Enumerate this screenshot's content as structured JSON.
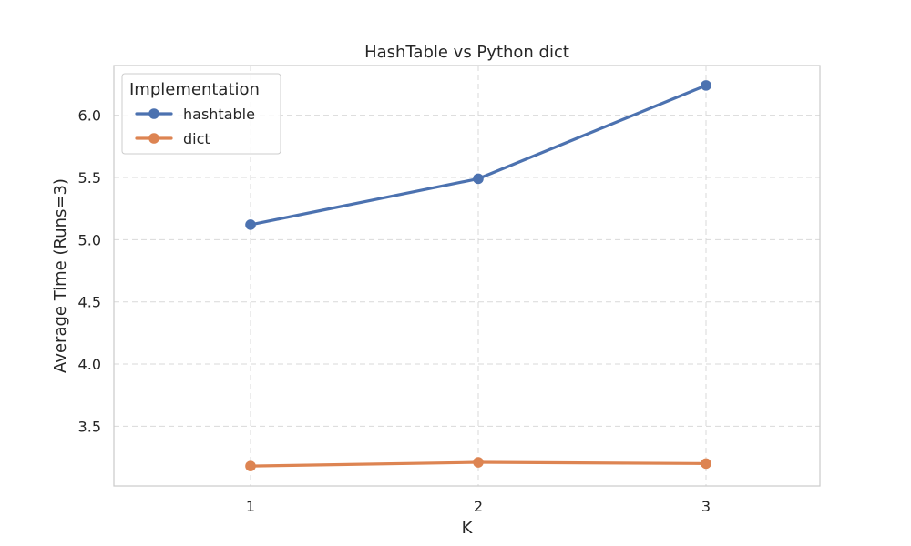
{
  "chart_data": {
    "type": "line",
    "title": "HashTable vs Python dict",
    "xlabel": "K",
    "ylabel": "Average Time (Runs=3)",
    "x": [
      1,
      2,
      3
    ],
    "x_ticks": [
      "1",
      "2",
      "3"
    ],
    "xlim": [
      0.4,
      3.5
    ],
    "y_ticks": [
      "3.5",
      "4.0",
      "4.5",
      "5.0",
      "5.5",
      "6.0"
    ],
    "ylim": [
      3.02,
      6.4
    ],
    "grid": true,
    "legend": {
      "title": "Implementation",
      "placement": "top-left"
    },
    "series": [
      {
        "name": "hashtable",
        "color": "#4c72b0",
        "values": [
          5.12,
          5.49,
          6.24
        ]
      },
      {
        "name": "dict",
        "color": "#dd8452",
        "values": [
          3.18,
          3.21,
          3.2
        ]
      }
    ]
  }
}
